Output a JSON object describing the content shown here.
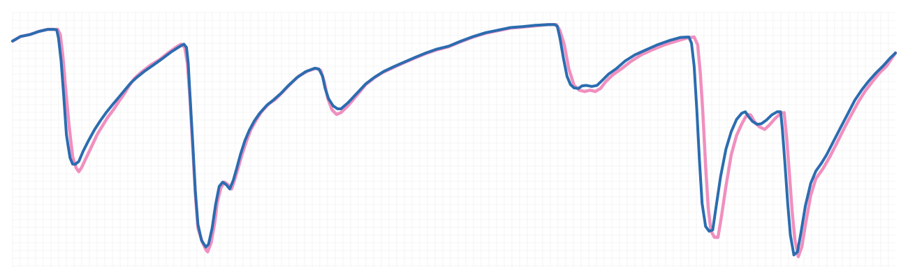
{
  "chart_data": {
    "type": "line",
    "title": "",
    "xlabel": "",
    "ylabel": "",
    "xlim": [
      0,
      1
    ],
    "ylim": [
      0,
      1
    ],
    "grid": true,
    "legend": "none",
    "series": [
      {
        "color": "#f08fbf",
        "points": [
          [
            0.0,
            0.888
          ],
          [
            0.009,
            0.906
          ],
          [
            0.02,
            0.914
          ],
          [
            0.03,
            0.926
          ],
          [
            0.04,
            0.934
          ],
          [
            0.046,
            0.934
          ],
          [
            0.051,
            0.934
          ],
          [
            0.054,
            0.914
          ],
          [
            0.057,
            0.829
          ],
          [
            0.06,
            0.707
          ],
          [
            0.064,
            0.556
          ],
          [
            0.068,
            0.434
          ],
          [
            0.072,
            0.39
          ],
          [
            0.075,
            0.375
          ],
          [
            0.078,
            0.39
          ],
          [
            0.084,
            0.434
          ],
          [
            0.09,
            0.478
          ],
          [
            0.096,
            0.522
          ],
          [
            0.102,
            0.556
          ],
          [
            0.108,
            0.59
          ],
          [
            0.114,
            0.617
          ],
          [
            0.12,
            0.649
          ],
          [
            0.126,
            0.678
          ],
          [
            0.132,
            0.712
          ],
          [
            0.138,
            0.741
          ],
          [
            0.146,
            0.766
          ],
          [
            0.156,
            0.793
          ],
          [
            0.166,
            0.814
          ],
          [
            0.176,
            0.841
          ],
          [
            0.186,
            0.866
          ],
          [
            0.191,
            0.876
          ],
          [
            0.195,
            0.863
          ],
          [
            0.198,
            0.8
          ],
          [
            0.201,
            0.66
          ],
          [
            0.204,
            0.473
          ],
          [
            0.207,
            0.29
          ],
          [
            0.21,
            0.153
          ],
          [
            0.215,
            0.097
          ],
          [
            0.219,
            0.068
          ],
          [
            0.221,
            0.06
          ],
          [
            0.225,
            0.097
          ],
          [
            0.229,
            0.176
          ],
          [
            0.232,
            0.256
          ],
          [
            0.236,
            0.312
          ],
          [
            0.24,
            0.334
          ],
          [
            0.244,
            0.324
          ],
          [
            0.248,
            0.307
          ],
          [
            0.252,
            0.348
          ],
          [
            0.256,
            0.395
          ],
          [
            0.26,
            0.443
          ],
          [
            0.265,
            0.495
          ],
          [
            0.27,
            0.541
          ],
          [
            0.276,
            0.578
          ],
          [
            0.282,
            0.61
          ],
          [
            0.29,
            0.641
          ],
          [
            0.298,
            0.66
          ],
          [
            0.306,
            0.688
          ],
          [
            0.314,
            0.717
          ],
          [
            0.324,
            0.75
          ],
          [
            0.334,
            0.77
          ],
          [
            0.344,
            0.781
          ],
          [
            0.349,
            0.773
          ],
          [
            0.353,
            0.729
          ],
          [
            0.357,
            0.663
          ],
          [
            0.362,
            0.617
          ],
          [
            0.367,
            0.6
          ],
          [
            0.372,
            0.607
          ],
          [
            0.38,
            0.634
          ],
          [
            0.39,
            0.675
          ],
          [
            0.4,
            0.717
          ],
          [
            0.41,
            0.744
          ],
          [
            0.42,
            0.766
          ],
          [
            0.432,
            0.785
          ],
          [
            0.444,
            0.804
          ],
          [
            0.456,
            0.822
          ],
          [
            0.468,
            0.839
          ],
          [
            0.48,
            0.853
          ],
          [
            0.494,
            0.866
          ],
          [
            0.508,
            0.886
          ],
          [
            0.522,
            0.904
          ],
          [
            0.536,
            0.919
          ],
          [
            0.55,
            0.929
          ],
          [
            0.564,
            0.939
          ],
          [
            0.578,
            0.943
          ],
          [
            0.592,
            0.948
          ],
          [
            0.606,
            0.953
          ],
          [
            0.616,
            0.953
          ],
          [
            0.62,
            0.929
          ],
          [
            0.625,
            0.873
          ],
          [
            0.63,
            0.78
          ],
          [
            0.636,
            0.714
          ],
          [
            0.642,
            0.695
          ],
          [
            0.648,
            0.69
          ],
          [
            0.654,
            0.695
          ],
          [
            0.66,
            0.69
          ],
          [
            0.666,
            0.702
          ],
          [
            0.672,
            0.729
          ],
          [
            0.68,
            0.756
          ],
          [
            0.69,
            0.78
          ],
          [
            0.7,
            0.807
          ],
          [
            0.712,
            0.834
          ],
          [
            0.724,
            0.853
          ],
          [
            0.738,
            0.873
          ],
          [
            0.752,
            0.888
          ],
          [
            0.764,
            0.9
          ],
          [
            0.772,
            0.904
          ],
          [
            0.776,
            0.873
          ],
          [
            0.779,
            0.76
          ],
          [
            0.782,
            0.6
          ],
          [
            0.785,
            0.4
          ],
          [
            0.788,
            0.232
          ],
          [
            0.791,
            0.143
          ],
          [
            0.795,
            0.117
          ],
          [
            0.799,
            0.117
          ],
          [
            0.803,
            0.2
          ],
          [
            0.808,
            0.317
          ],
          [
            0.814,
            0.441
          ],
          [
            0.82,
            0.517
          ],
          [
            0.826,
            0.563
          ],
          [
            0.832,
            0.6
          ],
          [
            0.836,
            0.598
          ],
          [
            0.84,
            0.573
          ],
          [
            0.846,
            0.551
          ],
          [
            0.852,
            0.541
          ],
          [
            0.858,
            0.561
          ],
          [
            0.864,
            0.585
          ],
          [
            0.87,
            0.604
          ],
          [
            0.874,
            0.607
          ],
          [
            0.877,
            0.5
          ],
          [
            0.88,
            0.363
          ],
          [
            0.883,
            0.22
          ],
          [
            0.886,
            0.11
          ],
          [
            0.89,
            0.041
          ],
          [
            0.894,
            0.08
          ],
          [
            0.898,
            0.165
          ],
          [
            0.904,
            0.282
          ],
          [
            0.91,
            0.348
          ],
          [
            0.918,
            0.387
          ],
          [
            0.926,
            0.436
          ],
          [
            0.934,
            0.49
          ],
          [
            0.942,
            0.546
          ],
          [
            0.95,
            0.598
          ],
          [
            0.958,
            0.649
          ],
          [
            0.966,
            0.693
          ],
          [
            0.974,
            0.729
          ],
          [
            0.982,
            0.763
          ],
          [
            0.99,
            0.79
          ],
          [
            1.0,
            0.841
          ]
        ]
      },
      {
        "color": "#2b6cb0",
        "points": [
          [
            0.0,
            0.888
          ],
          [
            0.009,
            0.906
          ],
          [
            0.02,
            0.914
          ],
          [
            0.03,
            0.926
          ],
          [
            0.04,
            0.934
          ],
          [
            0.046,
            0.934
          ],
          [
            0.05,
            0.932
          ],
          [
            0.052,
            0.9
          ],
          [
            0.055,
            0.81
          ],
          [
            0.058,
            0.67
          ],
          [
            0.061,
            0.52
          ],
          [
            0.065,
            0.43
          ],
          [
            0.068,
            0.405
          ],
          [
            0.071,
            0.404
          ],
          [
            0.075,
            0.415
          ],
          [
            0.08,
            0.456
          ],
          [
            0.086,
            0.497
          ],
          [
            0.093,
            0.541
          ],
          [
            0.1,
            0.578
          ],
          [
            0.106,
            0.607
          ],
          [
            0.113,
            0.637
          ],
          [
            0.12,
            0.666
          ],
          [
            0.127,
            0.695
          ],
          [
            0.134,
            0.724
          ],
          [
            0.141,
            0.746
          ],
          [
            0.15,
            0.771
          ],
          [
            0.16,
            0.795
          ],
          [
            0.17,
            0.82
          ],
          [
            0.18,
            0.846
          ],
          [
            0.189,
            0.866
          ],
          [
            0.194,
            0.876
          ],
          [
            0.197,
            0.863
          ],
          [
            0.199,
            0.8
          ],
          [
            0.201,
            0.67
          ],
          [
            0.204,
            0.49
          ],
          [
            0.207,
            0.3
          ],
          [
            0.21,
            0.168
          ],
          [
            0.214,
            0.105
          ],
          [
            0.219,
            0.079
          ],
          [
            0.222,
            0.09
          ],
          [
            0.226,
            0.153
          ],
          [
            0.23,
            0.246
          ],
          [
            0.234,
            0.317
          ],
          [
            0.238,
            0.334
          ],
          [
            0.242,
            0.324
          ],
          [
            0.246,
            0.307
          ],
          [
            0.25,
            0.341
          ],
          [
            0.254,
            0.39
          ],
          [
            0.258,
            0.441
          ],
          [
            0.263,
            0.495
          ],
          [
            0.268,
            0.537
          ],
          [
            0.274,
            0.575
          ],
          [
            0.28,
            0.605
          ],
          [
            0.288,
            0.636
          ],
          [
            0.296,
            0.658
          ],
          [
            0.304,
            0.683
          ],
          [
            0.312,
            0.712
          ],
          [
            0.322,
            0.744
          ],
          [
            0.332,
            0.768
          ],
          [
            0.342,
            0.781
          ],
          [
            0.347,
            0.778
          ],
          [
            0.351,
            0.751
          ],
          [
            0.354,
            0.702
          ],
          [
            0.358,
            0.661
          ],
          [
            0.363,
            0.634
          ],
          [
            0.368,
            0.622
          ],
          [
            0.372,
            0.622
          ],
          [
            0.38,
            0.646
          ],
          [
            0.39,
            0.683
          ],
          [
            0.4,
            0.72
          ],
          [
            0.41,
            0.746
          ],
          [
            0.42,
            0.768
          ],
          [
            0.432,
            0.788
          ],
          [
            0.444,
            0.806
          ],
          [
            0.456,
            0.824
          ],
          [
            0.468,
            0.841
          ],
          [
            0.48,
            0.856
          ],
          [
            0.494,
            0.868
          ],
          [
            0.508,
            0.888
          ],
          [
            0.522,
            0.906
          ],
          [
            0.536,
            0.921
          ],
          [
            0.55,
            0.931
          ],
          [
            0.564,
            0.941
          ],
          [
            0.578,
            0.945
          ],
          [
            0.592,
            0.95
          ],
          [
            0.608,
            0.953
          ],
          [
            0.614,
            0.953
          ],
          [
            0.617,
            0.946
          ],
          [
            0.62,
            0.9
          ],
          [
            0.624,
            0.82
          ],
          [
            0.628,
            0.75
          ],
          [
            0.632,
            0.717
          ],
          [
            0.636,
            0.704
          ],
          [
            0.641,
            0.702
          ],
          [
            0.645,
            0.712
          ],
          [
            0.65,
            0.714
          ],
          [
            0.656,
            0.71
          ],
          [
            0.662,
            0.714
          ],
          [
            0.668,
            0.734
          ],
          [
            0.675,
            0.758
          ],
          [
            0.684,
            0.78
          ],
          [
            0.694,
            0.81
          ],
          [
            0.705,
            0.834
          ],
          [
            0.717,
            0.853
          ],
          [
            0.73,
            0.873
          ],
          [
            0.744,
            0.89
          ],
          [
            0.756,
            0.902
          ],
          [
            0.766,
            0.904
          ],
          [
            0.769,
            0.88
          ],
          [
            0.772,
            0.79
          ],
          [
            0.775,
            0.62
          ],
          [
            0.778,
            0.42
          ],
          [
            0.781,
            0.25
          ],
          [
            0.785,
            0.16
          ],
          [
            0.789,
            0.141
          ],
          [
            0.793,
            0.146
          ],
          [
            0.797,
            0.24
          ],
          [
            0.802,
            0.356
          ],
          [
            0.808,
            0.463
          ],
          [
            0.814,
            0.532
          ],
          [
            0.82,
            0.58
          ],
          [
            0.826,
            0.605
          ],
          [
            0.83,
            0.61
          ],
          [
            0.834,
            0.59
          ],
          [
            0.838,
            0.573
          ],
          [
            0.843,
            0.561
          ],
          [
            0.848,
            0.563
          ],
          [
            0.854,
            0.578
          ],
          [
            0.86,
            0.598
          ],
          [
            0.866,
            0.61
          ],
          [
            0.87,
            0.61
          ],
          [
            0.872,
            0.54
          ],
          [
            0.875,
            0.4
          ],
          [
            0.878,
            0.25
          ],
          [
            0.881,
            0.126
          ],
          [
            0.885,
            0.048
          ],
          [
            0.889,
            0.06
          ],
          [
            0.893,
            0.136
          ],
          [
            0.898,
            0.241
          ],
          [
            0.904,
            0.329
          ],
          [
            0.91,
            0.378
          ],
          [
            0.916,
            0.407
          ],
          [
            0.922,
            0.441
          ],
          [
            0.93,
            0.495
          ],
          [
            0.938,
            0.549
          ],
          [
            0.946,
            0.602
          ],
          [
            0.954,
            0.656
          ],
          [
            0.962,
            0.697
          ],
          [
            0.97,
            0.732
          ],
          [
            0.978,
            0.763
          ],
          [
            0.986,
            0.79
          ],
          [
            0.994,
            0.821
          ],
          [
            1.0,
            0.841
          ]
        ]
      }
    ]
  }
}
